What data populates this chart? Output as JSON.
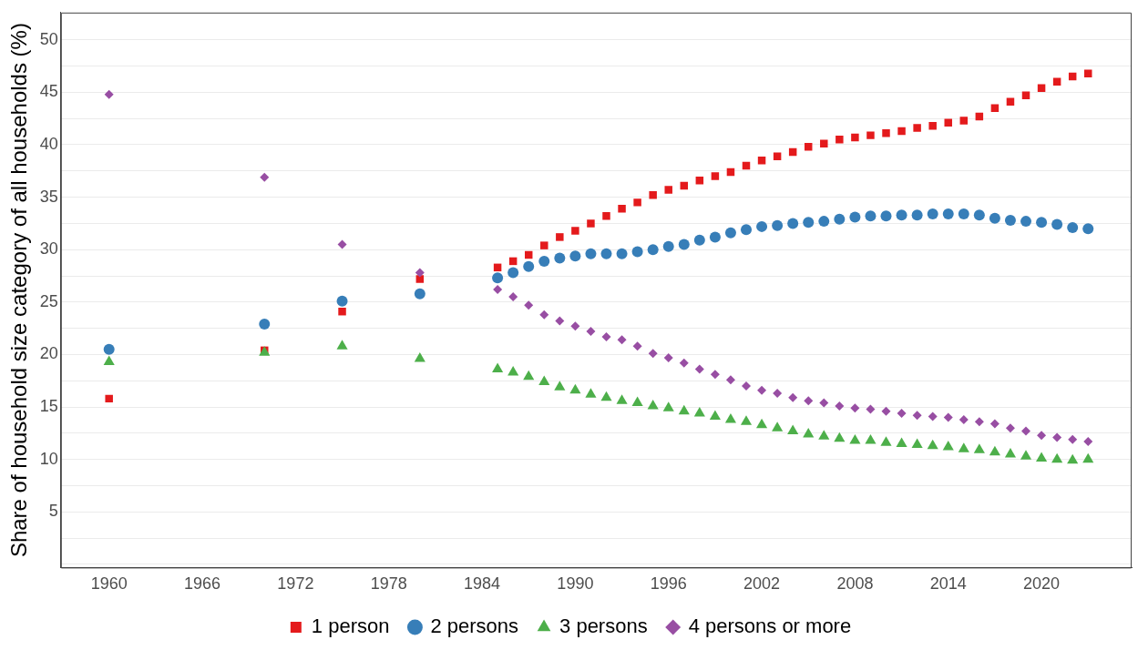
{
  "chart_data": {
    "type": "scatter",
    "ylabel": "Share of household size category of all households (%)",
    "x": [
      1960,
      1970,
      1975,
      1980,
      1985,
      1986,
      1987,
      1988,
      1989,
      1990,
      1991,
      1992,
      1993,
      1994,
      1995,
      1996,
      1997,
      1998,
      1999,
      2000,
      2001,
      2002,
      2003,
      2004,
      2005,
      2006,
      2007,
      2008,
      2009,
      2010,
      2011,
      2012,
      2013,
      2014,
      2015,
      2016,
      2017,
      2018,
      2019,
      2020,
      2021,
      2022,
      2023
    ],
    "series": [
      {
        "name": "1 person",
        "color": "#e41a1c",
        "marker": "square",
        "values": [
          15.8,
          20.4,
          24.1,
          27.2,
          28.3,
          28.9,
          29.5,
          30.4,
          31.2,
          31.8,
          32.5,
          33.2,
          33.9,
          34.5,
          35.2,
          35.7,
          36.1,
          36.6,
          37.0,
          37.4,
          38.0,
          38.5,
          38.9,
          39.3,
          39.8,
          40.1,
          40.5,
          40.7,
          40.9,
          41.1,
          41.3,
          41.6,
          41.8,
          42.1,
          42.3,
          42.7,
          43.5,
          44.1,
          44.7,
          45.4,
          46.0,
          46.5,
          46.8
        ]
      },
      {
        "name": "2 persons",
        "color": "#377eb8",
        "marker": "circle",
        "values": [
          20.5,
          22.9,
          25.1,
          25.8,
          27.3,
          27.8,
          28.4,
          28.9,
          29.2,
          29.4,
          29.6,
          29.6,
          29.6,
          29.8,
          30.0,
          30.3,
          30.5,
          30.9,
          31.2,
          31.6,
          31.9,
          32.2,
          32.3,
          32.5,
          32.6,
          32.7,
          32.9,
          33.1,
          33.2,
          33.2,
          33.3,
          33.3,
          33.4,
          33.4,
          33.4,
          33.3,
          33.0,
          32.8,
          32.7,
          32.6,
          32.4,
          32.1,
          32.0
        ]
      },
      {
        "name": "3 persons",
        "color": "#4daf4a",
        "marker": "triangle",
        "values": [
          19.3,
          20.2,
          20.8,
          19.6,
          18.6,
          18.3,
          17.9,
          17.4,
          16.9,
          16.6,
          16.2,
          15.9,
          15.6,
          15.4,
          15.1,
          14.9,
          14.6,
          14.4,
          14.1,
          13.8,
          13.6,
          13.3,
          13.0,
          12.7,
          12.4,
          12.2,
          12.0,
          11.8,
          11.8,
          11.6,
          11.5,
          11.4,
          11.3,
          11.2,
          11.0,
          10.9,
          10.7,
          10.5,
          10.3,
          10.1,
          10.0,
          9.9,
          10.0
        ]
      },
      {
        "name": "4 persons or more",
        "color": "#984ea3",
        "marker": "diamond",
        "values": [
          44.8,
          36.9,
          30.5,
          27.8,
          26.2,
          25.5,
          24.7,
          23.8,
          23.2,
          22.7,
          22.2,
          21.7,
          21.4,
          20.8,
          20.1,
          19.7,
          19.2,
          18.6,
          18.1,
          17.6,
          17.0,
          16.6,
          16.3,
          15.9,
          15.6,
          15.4,
          15.1,
          14.9,
          14.8,
          14.6,
          14.4,
          14.2,
          14.1,
          14.0,
          13.8,
          13.6,
          13.4,
          13.0,
          12.7,
          12.3,
          12.1,
          11.9,
          11.7
        ]
      }
    ],
    "xlim": [
      1956.9,
      2025.8
    ],
    "xticks": [
      1960,
      1966,
      1972,
      1978,
      1984,
      1990,
      1996,
      2002,
      2008,
      2014,
      2020
    ],
    "ylim": [
      -0.3,
      52.6
    ],
    "yticks": [
      {
        "value": 0,
        "label": null
      },
      {
        "value": 2.5,
        "label": null
      },
      5,
      {
        "value": 7.5,
        "label": null
      },
      10,
      {
        "value": 12.5,
        "label": null
      },
      15,
      {
        "value": 17.5,
        "label": null
      },
      20,
      {
        "value": 22.5,
        "label": null
      },
      25,
      {
        "value": 27.5,
        "label": null
      },
      30,
      {
        "value": 32.5,
        "label": null
      },
      35,
      {
        "value": 37.5,
        "label": null
      },
      40,
      {
        "value": 42.5,
        "label": null
      },
      45,
      {
        "value": 47.5,
        "label": null
      },
      50
    ],
    "grid": "y",
    "legend": "bottom"
  }
}
